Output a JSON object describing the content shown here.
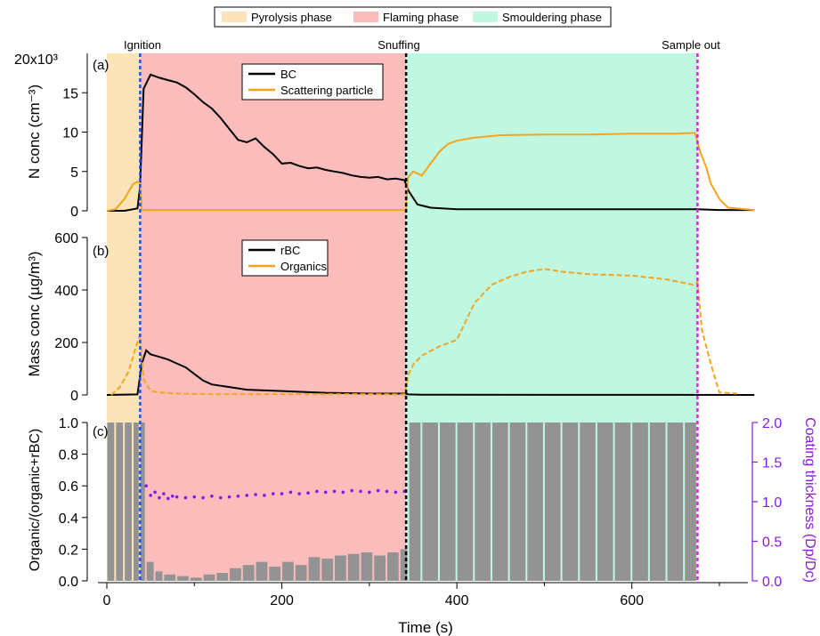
{
  "legend_top": [
    {
      "label": "Pyrolysis phase",
      "color": "#fbe4b8"
    },
    {
      "label": "Flaming phase",
      "color": "#fbbcbc"
    },
    {
      "label": "Smouldering phase",
      "color": "#bff7e0"
    }
  ],
  "events": [
    {
      "label": "Ignition",
      "t": 38,
      "color": "#1f4ff0"
    },
    {
      "label": "Snuffing",
      "t": 342,
      "color": "#000000"
    },
    {
      "label": "Sample out",
      "t": 675,
      "color": "#e81ae8"
    }
  ],
  "phases": [
    {
      "name": "Pyrolysis phase",
      "start": 0,
      "end": 38
    },
    {
      "name": "Flaming phase",
      "start": 38,
      "end": 342
    },
    {
      "name": "Smouldering phase",
      "start": 342,
      "end": 675
    }
  ],
  "colors": {
    "bc": "#000000",
    "organic": "#f5a41e",
    "coating": "#8a17e8",
    "bar": "#939393",
    "axis_right": "#8a17e8"
  },
  "xaxis": {
    "label": "Time (s)",
    "min": -10,
    "max": 740,
    "ticks": [
      0,
      200,
      400,
      600
    ]
  },
  "panels": {
    "a": {
      "tag": "(a)",
      "ylabel": "N conc (cm⁻³)",
      "ytop_label": "20x10³",
      "ymin": 0,
      "ymax": 20,
      "ticks": [
        0,
        5,
        10,
        15
      ],
      "legend": [
        "BC",
        "Scattering particle"
      ]
    },
    "b": {
      "tag": "(b)",
      "ylabel": "Mass conc (µg/m³)",
      "ymin": 0,
      "ymax": 600,
      "ticks": [
        0,
        200,
        400,
        600
      ],
      "legend": [
        "rBC",
        "Organics"
      ]
    },
    "c": {
      "tag": "(c)",
      "ylabel": "Organic/(organic+rBC)",
      "ymin": 0,
      "ymax": 1.0,
      "ticks": [
        "0.0",
        "0.2",
        "0.4",
        "0.6",
        "0.8",
        "1.0"
      ],
      "ylabel_right": "Coating thickness (Dp/Dc)",
      "ymin_right": 0,
      "ymax_right": 2.0,
      "ticks_right": [
        "0.0",
        "0.5",
        "1.0",
        "1.5",
        "2.0"
      ]
    }
  },
  "chart_data": [
    {
      "type": "line",
      "panel": "a",
      "ylabel": "N conc (cm⁻³)",
      "ylim": [
        0,
        20
      ],
      "series": [
        {
          "name": "BC",
          "x": [
            0,
            20,
            35,
            38,
            42,
            50,
            60,
            70,
            80,
            90,
            100,
            110,
            120,
            130,
            140,
            150,
            160,
            170,
            180,
            190,
            200,
            210,
            220,
            230,
            240,
            250,
            260,
            270,
            280,
            290,
            300,
            310,
            320,
            330,
            340,
            345,
            355,
            370,
            400,
            500,
            600,
            675,
            700,
            740
          ],
          "y": [
            0,
            0,
            0.3,
            3,
            15.5,
            17.3,
            16.9,
            16.6,
            16.3,
            15.7,
            14.8,
            13.8,
            13.0,
            11.8,
            10.4,
            9.0,
            8.7,
            9.2,
            8.1,
            7.2,
            6.0,
            6.1,
            5.7,
            5.4,
            5.5,
            5.2,
            5.0,
            4.8,
            4.5,
            4.3,
            4.2,
            4.3,
            4.0,
            4.1,
            3.9,
            2.5,
            0.8,
            0.4,
            0.2,
            0.2,
            0.2,
            0.2,
            0.1,
            0.1
          ]
        },
        {
          "name": "Scattering particle",
          "x": [
            0,
            10,
            20,
            30,
            35,
            38,
            40,
            342,
            344,
            350,
            360,
            370,
            380,
            390,
            400,
            420,
            450,
            500,
            550,
            600,
            650,
            672,
            678,
            685,
            690,
            700,
            710,
            740
          ],
          "y": [
            0,
            0.2,
            1.5,
            3.4,
            3.7,
            3.5,
            0.1,
            0.1,
            4.2,
            5.0,
            4.5,
            6.0,
            7.5,
            8.5,
            8.9,
            9.3,
            9.6,
            9.7,
            9.7,
            9.8,
            9.8,
            9.9,
            7.5,
            5.5,
            3.5,
            1.5,
            0.4,
            0.1
          ]
        }
      ]
    },
    {
      "type": "line",
      "panel": "b",
      "ylabel": "Mass conc (µg/m³)",
      "ylim": [
        0,
        600
      ],
      "series": [
        {
          "name": "rBC",
          "x": [
            0,
            35,
            40,
            45,
            50,
            60,
            70,
            80,
            90,
            100,
            110,
            120,
            140,
            160,
            200,
            250,
            300,
            340,
            345,
            360,
            740
          ],
          "y": [
            0,
            2,
            120,
            170,
            155,
            145,
            135,
            120,
            105,
            80,
            55,
            40,
            30,
            20,
            15,
            8,
            5,
            5,
            2,
            1,
            0
          ]
        },
        {
          "name": "Organics",
          "x": [
            5,
            15,
            25,
            33,
            38,
            42,
            50,
            60,
            80,
            120,
            200,
            300,
            340,
            345,
            350,
            360,
            380,
            400,
            420,
            440,
            460,
            480,
            500,
            520,
            550,
            600,
            640,
            670,
            675,
            680,
            690,
            700,
            720
          ],
          "y": [
            0,
            30,
            90,
            180,
            230,
            60,
            15,
            10,
            5,
            3,
            3,
            3,
            2,
            80,
            115,
            150,
            185,
            210,
            350,
            420,
            450,
            470,
            480,
            470,
            460,
            455,
            440,
            420,
            430,
            250,
            120,
            10,
            5
          ]
        }
      ]
    },
    {
      "type": "bar",
      "panel": "c",
      "ylabel": "Organic/(organic+rBC)",
      "ylim": [
        0,
        1.0
      ],
      "series": [
        {
          "name": "",
          "x": [
            0,
            10,
            20,
            30,
            38,
            45,
            55,
            65,
            80,
            95,
            110,
            125,
            140,
            155,
            170,
            185,
            200,
            215,
            230,
            245,
            260,
            275,
            290,
            305,
            320,
            335,
            345,
            360,
            380,
            400,
            420,
            440,
            460,
            480,
            500,
            520,
            540,
            560,
            580,
            600,
            620,
            640,
            660,
            675
          ],
          "y": [
            1.0,
            1.0,
            1.0,
            1.0,
            1.0,
            0.12,
            0.06,
            0.04,
            0.03,
            0.02,
            0.04,
            0.05,
            0.08,
            0.1,
            0.12,
            0.09,
            0.12,
            0.1,
            0.15,
            0.14,
            0.16,
            0.17,
            0.18,
            0.16,
            0.18,
            0.2,
            1.0,
            1.0,
            1.0,
            1.0,
            1.0,
            1.0,
            1.0,
            1.0,
            1.0,
            1.0,
            1.0,
            1.0,
            1.0,
            1.0,
            1.0,
            1.0,
            1.0,
            0
          ]
        }
      ]
    },
    {
      "type": "scatter",
      "panel": "c",
      "ylabel": "Coating thickness (Dp/Dc)",
      "ylim": [
        0,
        2.0
      ],
      "series": [
        {
          "name": "",
          "x": [
            45,
            50,
            55,
            60,
            65,
            70,
            75,
            80,
            90,
            100,
            110,
            120,
            130,
            140,
            150,
            160,
            170,
            180,
            190,
            200,
            210,
            220,
            230,
            240,
            250,
            260,
            270,
            280,
            290,
            300,
            310,
            320,
            330,
            340
          ],
          "y": [
            1.2,
            1.08,
            1.12,
            1.05,
            1.1,
            1.04,
            1.07,
            1.06,
            1.05,
            1.06,
            1.05,
            1.07,
            1.05,
            1.06,
            1.07,
            1.08,
            1.09,
            1.08,
            1.1,
            1.1,
            1.12,
            1.1,
            1.11,
            1.13,
            1.12,
            1.13,
            1.12,
            1.14,
            1.13,
            1.12,
            1.14,
            1.13,
            1.12,
            1.13
          ]
        }
      ]
    }
  ]
}
